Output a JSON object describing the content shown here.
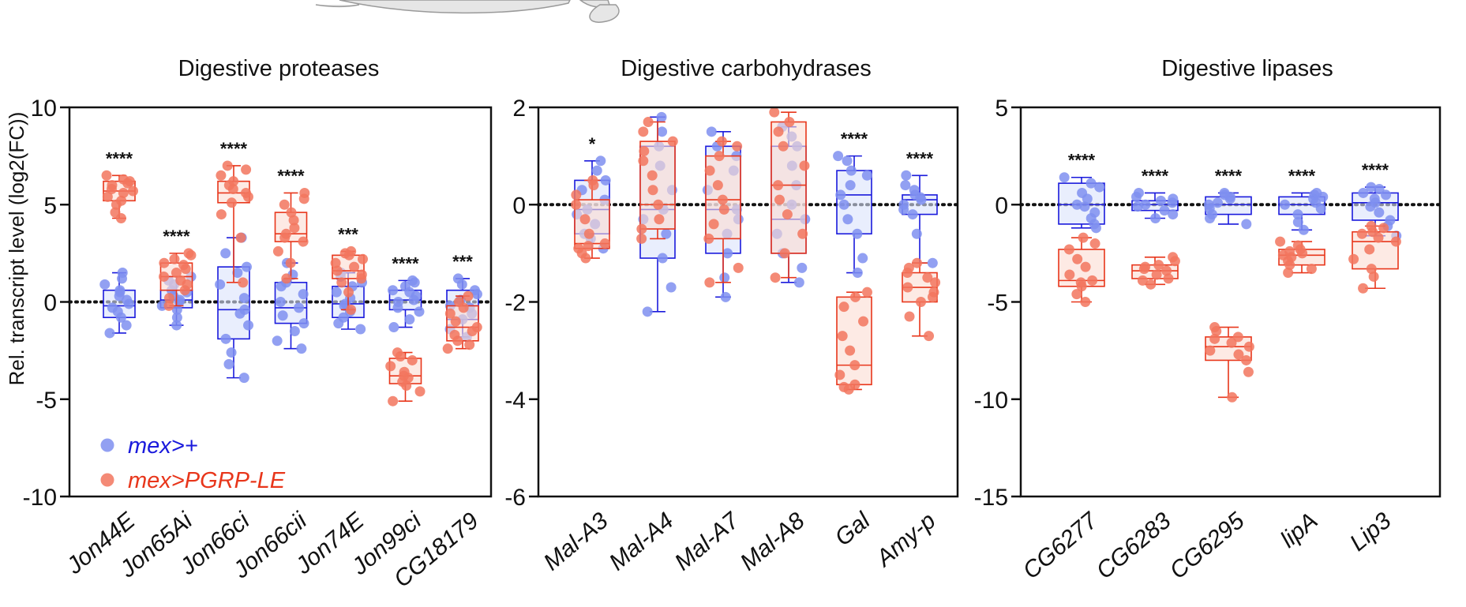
{
  "colors": {
    "control": "#1a1adc",
    "control_point": "#7f8ff0",
    "control_fill": "#dbe3fb",
    "treated": "#e8361b",
    "treated_point": "#f2755e",
    "treated_fill": "#fbdcd2"
  },
  "chart_data": [
    {
      "type": "box",
      "title": "Digestive proteases",
      "ylabel": "Rel. transcript level (log2(FC))",
      "ylim": [
        -10,
        10
      ],
      "yticks": [
        -10,
        -5,
        0,
        5,
        10
      ],
      "reference_line": 0,
      "legend": {
        "position": "bottom-left",
        "entries": [
          {
            "label": "mex>+",
            "group": "control"
          },
          {
            "label": "mex>PGRP-LE",
            "group": "treated"
          }
        ]
      },
      "categories": [
        {
          "name": "Jon44E",
          "sig": "****",
          "control": {
            "min": -1.6,
            "q1": -0.8,
            "median": -0.2,
            "q3": 0.6,
            "max": 1.5,
            "points": [
              -1.6,
              -1.2,
              -0.8,
              -0.5,
              -0.3,
              -0.1,
              0.1,
              0.3,
              0.5,
              0.6,
              0.9,
              1.2,
              1.5
            ]
          },
          "treated": {
            "min": 4.3,
            "q1": 5.2,
            "median": 5.7,
            "q3": 6.2,
            "max": 6.5,
            "points": [
              4.3,
              4.6,
              5.0,
              5.2,
              5.4,
              5.6,
              5.7,
              5.8,
              6.0,
              6.1,
              6.2,
              6.3,
              6.5
            ]
          }
        },
        {
          "name": "Jon65Ai",
          "sig": "****",
          "control": {
            "min": -1.2,
            "q1": -0.3,
            "median": 0.1,
            "q3": 0.6,
            "max": 1.3,
            "points": [
              -1.2,
              -0.8,
              -0.4,
              -0.2,
              0.0,
              0.1,
              0.3,
              0.5,
              0.6,
              0.9,
              1.1,
              1.3
            ]
          },
          "treated": {
            "min": -0.2,
            "q1": 0.6,
            "median": 1.3,
            "q3": 2.0,
            "max": 2.5,
            "points": [
              -0.2,
              0.2,
              0.6,
              0.9,
              1.1,
              1.3,
              1.5,
              1.7,
              1.9,
              2.0,
              2.2,
              2.4,
              2.5
            ]
          }
        },
        {
          "name": "Jon66ci",
          "sig": "****",
          "control": {
            "min": -3.9,
            "q1": -1.9,
            "median": -0.4,
            "q3": 1.8,
            "max": 3.3,
            "points": [
              -3.9,
              -3.2,
              -2.6,
              -1.9,
              -1.2,
              -0.6,
              -0.4,
              0.2,
              0.9,
              1.5,
              1.8,
              2.5,
              3.3
            ]
          },
          "treated": {
            "min": 1.0,
            "q1": 5.1,
            "median": 5.6,
            "q3": 6.2,
            "max": 7.0,
            "points": [
              1.0,
              3.3,
              4.5,
              5.1,
              5.4,
              5.6,
              5.8,
              6.0,
              6.2,
              6.5,
              6.8,
              7.0
            ]
          }
        },
        {
          "name": "Jon66cii",
          "sig": "****",
          "control": {
            "min": -2.4,
            "q1": -1.1,
            "median": -0.3,
            "q3": 1.0,
            "max": 2.0,
            "points": [
              -2.4,
              -2.0,
              -1.5,
              -1.1,
              -0.7,
              -0.3,
              0.0,
              0.4,
              0.8,
              1.0,
              1.4,
              2.0
            ]
          },
          "treated": {
            "min": 1.2,
            "q1": 3.1,
            "median": 3.5,
            "q3": 4.6,
            "max": 5.6,
            "points": [
              1.2,
              2.0,
              2.6,
              3.1,
              3.3,
              3.5,
              3.8,
              4.2,
              4.6,
              5.0,
              5.3,
              5.6
            ]
          }
        },
        {
          "name": "Jon74E",
          "sig": "***",
          "control": {
            "min": -1.4,
            "q1": -0.8,
            "median": -0.1,
            "q3": 0.8,
            "max": 1.5,
            "points": [
              -1.4,
              -1.1,
              -0.8,
              -0.5,
              -0.2,
              -0.1,
              0.2,
              0.5,
              0.8,
              1.0,
              1.3,
              1.5
            ]
          },
          "treated": {
            "min": -0.4,
            "q1": 1.2,
            "median": 1.6,
            "q3": 2.4,
            "max": 2.6,
            "points": [
              -0.4,
              0.5,
              1.0,
              1.2,
              1.4,
              1.6,
              1.8,
              2.0,
              2.2,
              2.4,
              2.5,
              2.6
            ]
          }
        },
        {
          "name": "Jon99ci",
          "sig": "****",
          "control": {
            "min": -1.3,
            "q1": -0.4,
            "median": 0.1,
            "q3": 0.6,
            "max": 1.1,
            "points": [
              -1.3,
              -0.9,
              -0.5,
              -0.3,
              0.0,
              0.1,
              0.3,
              0.5,
              0.6,
              0.8,
              1.0,
              1.1
            ]
          },
          "treated": {
            "min": -5.1,
            "q1": -4.2,
            "median": -3.8,
            "q3": -2.9,
            "max": -2.6,
            "points": [
              -5.1,
              -4.6,
              -4.3,
              -4.1,
              -3.9,
              -3.8,
              -3.6,
              -3.3,
              -3.0,
              -2.8,
              -2.6
            ]
          }
        },
        {
          "name": "CG18179",
          "sig": "***",
          "control": {
            "min": -1.8,
            "q1": -0.9,
            "median": -0.2,
            "q3": 0.6,
            "max": 1.2,
            "points": [
              -1.8,
              -1.4,
              -0.9,
              -0.6,
              -0.3,
              -0.2,
              0.1,
              0.4,
              0.6,
              0.9,
              1.2
            ]
          },
          "treated": {
            "min": -2.4,
            "q1": -2.0,
            "median": -1.3,
            "q3": -0.2,
            "max": 0.3,
            "points": [
              -2.4,
              -2.2,
              -2.0,
              -1.7,
              -1.5,
              -1.3,
              -1.0,
              -0.6,
              -0.3,
              0.0,
              0.3
            ]
          }
        }
      ]
    },
    {
      "type": "box",
      "title": "Digestive carbohydrases",
      "ylim": [
        -6,
        2
      ],
      "yticks": [
        -6,
        -4,
        -2,
        0,
        2
      ],
      "reference_line": 0,
      "categories": [
        {
          "name": "Mal-A3",
          "sig": "*",
          "control": {
            "min": -0.9,
            "q1": -0.6,
            "median": -0.1,
            "q3": 0.5,
            "max": 0.9,
            "points": [
              -0.9,
              -0.7,
              -0.6,
              -0.4,
              -0.2,
              -0.1,
              0.1,
              0.3,
              0.5,
              0.7,
              0.9
            ]
          },
          "treated": {
            "min": -1.1,
            "q1": -0.9,
            "median": -0.8,
            "q3": 0.1,
            "max": 0.5,
            "points": [
              -1.1,
              -1.0,
              -0.9,
              -0.85,
              -0.8,
              -0.6,
              -0.3,
              0.0,
              0.2,
              0.4,
              0.5
            ]
          }
        },
        {
          "name": "Mal-A4",
          "sig": "",
          "control": {
            "min": -2.2,
            "q1": -1.1,
            "median": -0.1,
            "q3": 1.2,
            "max": 1.8,
            "points": [
              -2.2,
              -1.7,
              -1.1,
              -0.6,
              -0.3,
              -0.1,
              0.3,
              0.8,
              1.2,
              1.5,
              1.8
            ]
          },
          "treated": {
            "min": -0.7,
            "q1": -0.5,
            "median": 0.0,
            "q3": 1.3,
            "max": 1.7,
            "points": [
              -0.7,
              -0.5,
              -0.3,
              0.0,
              0.3,
              0.6,
              0.9,
              1.1,
              1.3,
              1.5,
              1.7
            ]
          }
        },
        {
          "name": "Mal-A7",
          "sig": "",
          "control": {
            "min": -1.9,
            "q1": -1.0,
            "median": -0.1,
            "q3": 1.2,
            "max": 1.5,
            "points": [
              -1.9,
              -1.5,
              -1.0,
              -0.6,
              -0.3,
              -0.1,
              0.3,
              0.7,
              1.0,
              1.2,
              1.5
            ]
          },
          "treated": {
            "min": -1.6,
            "q1": -0.7,
            "median": 0.1,
            "q3": 1.0,
            "max": 1.3,
            "points": [
              -1.6,
              -1.3,
              -0.7,
              -0.4,
              -0.1,
              0.1,
              0.4,
              0.7,
              1.0,
              1.2,
              1.3
            ]
          }
        },
        {
          "name": "Mal-A8",
          "sig": "",
          "control": {
            "min": -1.6,
            "q1": -1.0,
            "median": -0.3,
            "q3": 1.2,
            "max": 1.6,
            "points": [
              -1.6,
              -1.3,
              -1.0,
              -0.6,
              -0.3,
              0.0,
              0.4,
              0.8,
              1.2,
              1.4,
              1.6
            ]
          },
          "treated": {
            "min": -1.5,
            "q1": -1.0,
            "median": 0.4,
            "q3": 1.7,
            "max": 1.9,
            "points": [
              -1.5,
              -1.0,
              -0.6,
              -0.2,
              0.1,
              0.4,
              0.8,
              1.2,
              1.5,
              1.7,
              1.9
            ]
          }
        },
        {
          "name": "Gal",
          "sig": "****",
          "control": {
            "min": -1.4,
            "q1": -0.6,
            "median": 0.2,
            "q3": 0.7,
            "max": 1.0,
            "points": [
              -1.4,
              -1.1,
              -0.6,
              -0.3,
              0.0,
              0.2,
              0.4,
              0.6,
              0.7,
              0.9,
              1.0
            ]
          },
          "treated": {
            "min": -3.8,
            "q1": -3.7,
            "median": -3.3,
            "q3": -1.9,
            "max": -1.8,
            "points": [
              -3.8,
              -3.75,
              -3.7,
              -3.5,
              -3.3,
              -3.0,
              -2.7,
              -2.4,
              -2.1,
              -1.9,
              -1.8
            ]
          }
        },
        {
          "name": "Amy-p",
          "sig": "****",
          "control": {
            "min": -1.2,
            "q1": -0.2,
            "median": 0.1,
            "q3": 0.2,
            "max": 0.6,
            "points": [
              -1.2,
              -0.6,
              -0.2,
              -0.1,
              0.0,
              0.1,
              0.15,
              0.2,
              0.3,
              0.4,
              0.6
            ]
          },
          "treated": {
            "min": -2.7,
            "q1": -2.0,
            "median": -1.7,
            "q3": -1.4,
            "max": -1.2,
            "points": [
              -2.7,
              -2.3,
              -2.0,
              -1.9,
              -1.8,
              -1.7,
              -1.6,
              -1.5,
              -1.4,
              -1.3,
              -1.2
            ]
          }
        }
      ]
    },
    {
      "type": "box",
      "title": "Digestive lipases",
      "ylim": [
        -15,
        5
      ],
      "yticks": [
        -15,
        -10,
        -5,
        0,
        5
      ],
      "reference_line": 0,
      "categories": [
        {
          "name": "CG6277",
          "sig": "****",
          "control": {
            "min": -1.2,
            "q1": -1.0,
            "median": 0.0,
            "q3": 1.1,
            "max": 1.4,
            "points": [
              -1.2,
              -1.0,
              -0.7,
              -0.4,
              -0.1,
              0.0,
              0.3,
              0.6,
              0.9,
              1.1,
              1.4
            ]
          },
          "treated": {
            "min": -5.0,
            "q1": -4.2,
            "median": -3.9,
            "q3": -2.3,
            "max": -1.7,
            "points": [
              -5.0,
              -4.6,
              -4.2,
              -4.0,
              -3.9,
              -3.6,
              -3.2,
              -2.8,
              -2.3,
              -2.0,
              -1.7
            ]
          }
        },
        {
          "name": "CG6283",
          "sig": "****",
          "control": {
            "min": -0.7,
            "q1": -0.3,
            "median": 0.0,
            "q3": 0.2,
            "max": 0.6,
            "points": [
              -0.7,
              -0.5,
              -0.3,
              -0.1,
              0.0,
              0.1,
              0.2,
              0.3,
              0.4,
              0.6
            ]
          },
          "treated": {
            "min": -4.1,
            "q1": -3.8,
            "median": -3.4,
            "q3": -3.1,
            "max": -2.7,
            "points": [
              -4.1,
              -3.9,
              -3.8,
              -3.6,
              -3.4,
              -3.3,
              -3.2,
              -3.1,
              -2.9,
              -2.7
            ]
          }
        },
        {
          "name": "CG6295",
          "sig": "****",
          "control": {
            "min": -1.0,
            "q1": -0.5,
            "median": 0.0,
            "q3": 0.4,
            "max": 0.6,
            "points": [
              -1.0,
              -0.7,
              -0.5,
              -0.2,
              0.0,
              0.1,
              0.3,
              0.4,
              0.5,
              0.6
            ]
          },
          "treated": {
            "min": -9.9,
            "q1": -8.0,
            "median": -7.3,
            "q3": -6.8,
            "max": -6.3,
            "points": [
              -9.9,
              -8.6,
              -8.0,
              -7.7,
              -7.5,
              -7.3,
              -7.1,
              -6.9,
              -6.8,
              -6.5,
              -6.3
            ]
          }
        },
        {
          "name": "lipA",
          "sig": "****",
          "control": {
            "min": -1.3,
            "q1": -0.5,
            "median": 0.0,
            "q3": 0.4,
            "max": 0.6,
            "points": [
              -1.3,
              -0.9,
              -0.5,
              -0.2,
              0.0,
              0.1,
              0.3,
              0.4,
              0.5,
              0.6
            ]
          },
          "treated": {
            "min": -3.5,
            "q1": -3.1,
            "median": -2.6,
            "q3": -2.3,
            "max": -1.9,
            "points": [
              -3.5,
              -3.3,
              -3.1,
              -2.9,
              -2.7,
              -2.6,
              -2.5,
              -2.4,
              -2.3,
              -2.1,
              -1.9
            ]
          }
        },
        {
          "name": "Lip3",
          "sig": "****",
          "control": {
            "min": -1.6,
            "q1": -0.8,
            "median": 0.1,
            "q3": 0.6,
            "max": 0.9,
            "points": [
              -1.6,
              -1.1,
              -0.8,
              -0.4,
              -0.1,
              0.1,
              0.3,
              0.5,
              0.6,
              0.8,
              0.9
            ]
          },
          "treated": {
            "min": -4.3,
            "q1": -3.3,
            "median": -1.9,
            "q3": -1.4,
            "max": -1.1,
            "points": [
              -4.3,
              -3.7,
              -3.3,
              -2.8,
              -2.3,
              -1.9,
              -1.7,
              -1.5,
              -1.4,
              -1.2,
              -1.1
            ]
          }
        }
      ]
    }
  ]
}
